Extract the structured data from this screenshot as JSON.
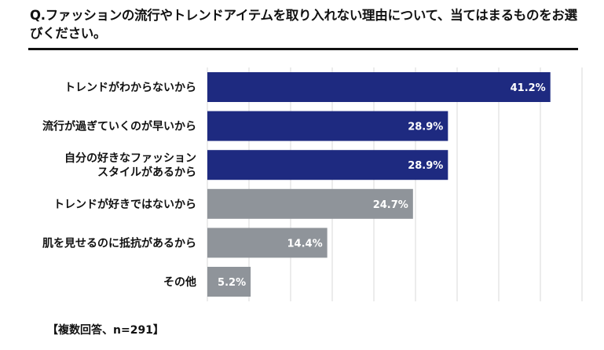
{
  "question": "Q.ファッションの流行やトレンドアイテムを取り入れない理由について、当てはまるものをお選びください。",
  "footnote": "【複数回答、n=291】",
  "colors": {
    "highlight": "#1e2a80",
    "base": "#8f949a",
    "grid": "#d9d9d9"
  },
  "chart_data": {
    "type": "bar",
    "orientation": "horizontal",
    "categories": [
      [
        "トレンドがわからないから"
      ],
      [
        "流行が過ぎていくのが早いから"
      ],
      [
        "自分の好きなファッション",
        "スタイルがあるから"
      ],
      [
        "トレンドが好きではないから"
      ],
      [
        "肌を見せるのに抵抗があるから"
      ],
      [
        "その他"
      ]
    ],
    "values": [
      41.2,
      28.9,
      28.9,
      24.7,
      14.4,
      5.2
    ],
    "value_labels": [
      "41.2%",
      "28.9%",
      "28.9%",
      "24.7%",
      "14.4%",
      "5.2%"
    ],
    "highlighted": [
      true,
      true,
      true,
      false,
      false,
      false
    ],
    "xlim": [
      0,
      45
    ],
    "grid": true
  }
}
